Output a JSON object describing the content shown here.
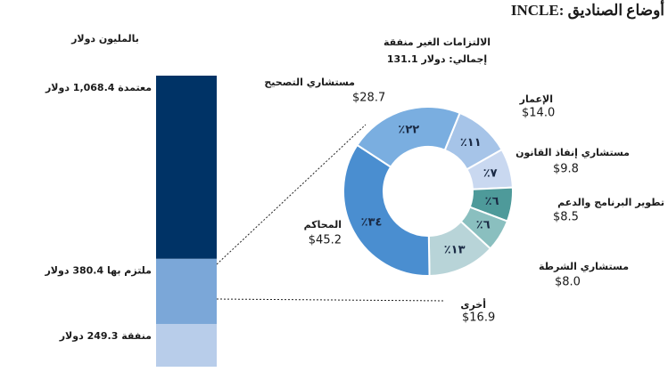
{
  "title": "INCLE: أوضاع الصناديق",
  "unit_label": "بالمليون دولار",
  "chart_data": [
    {
      "type": "bar",
      "stacked": true,
      "series": [
        {
          "color": "#b8cdea",
          "values": [
            249.3
          ],
          "value_labels": [
            "منفقة 249.3 دولار"
          ]
        },
        {
          "color": "#7ba7d8",
          "values": [
            380.4
          ],
          "value_labels": [
            "ملتزم بها 380.4 دولار"
          ]
        },
        {
          "color": "#003366",
          "values": [
            1068.4
          ],
          "value_labels": [
            "معتمدة 1,068.4 دولار"
          ]
        }
      ]
    },
    {
      "type": "pie",
      "donut": true,
      "title": "الالتزامات الغير منفقة",
      "subtitle": "إجمالي: دولار 131.1",
      "categories": [
        "الإعمار",
        "مستشاري إنفاذ القانون",
        "تطوير البرنامج والدعم",
        "مستشاري الشرطة",
        "أخرى",
        "المحاكم",
        "مستشاري التصحيح"
      ],
      "values": [
        14.0,
        9.8,
        8.5,
        8.0,
        16.9,
        45.2,
        28.7
      ],
      "value_labels": [
        "$14.0",
        "$9.8",
        "$8.5",
        "$8.0",
        "$16.9",
        "$45.2",
        "$28.7"
      ],
      "percents": [
        11,
        7,
        6,
        6,
        13,
        34,
        22
      ],
      "percent_labels": [
        "٪١١",
        "٪٧",
        "٪٦",
        "٪٦",
        "٪١٣",
        "٪٣٤",
        "٪٢٢"
      ],
      "colors": [
        "#a6c4e8",
        "#c9d8f0",
        "#4e9a9a",
        "#8abfbf",
        "#b8d4d8",
        "#4a8ed0",
        "#7aaee0"
      ]
    }
  ]
}
